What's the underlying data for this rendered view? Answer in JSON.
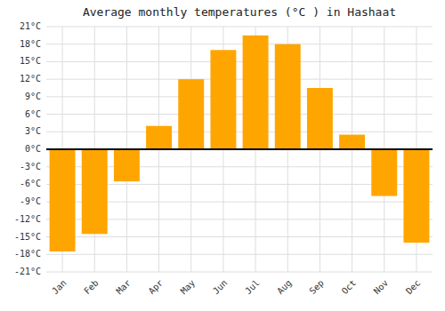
{
  "chart_data": {
    "type": "bar",
    "title": "Average monthly temperatures (°C ) in Hashaat",
    "categories": [
      "Jan",
      "Feb",
      "Mar",
      "Apr",
      "May",
      "Jun",
      "Jul",
      "Aug",
      "Sep",
      "Oct",
      "Nov",
      "Dec"
    ],
    "values": [
      -17.5,
      -14.5,
      -5.5,
      4.0,
      12.0,
      17.0,
      19.5,
      18.0,
      10.5,
      2.5,
      -8.0,
      -16.0
    ],
    "color": "#FFA500",
    "ylim": [
      -21,
      21
    ],
    "yticks": [
      {
        "value": -21,
        "label": "-21°C"
      },
      {
        "value": -18,
        "label": "-18°C"
      },
      {
        "value": -15,
        "label": "-15°C"
      },
      {
        "value": -12,
        "label": "-12°C"
      },
      {
        "value": -9,
        "label": "-9°C"
      },
      {
        "value": -6,
        "label": "-6°C"
      },
      {
        "value": -3,
        "label": "-3°C"
      },
      {
        "value": 0,
        "label": "0°C"
      },
      {
        "value": 3,
        "label": "3°C"
      },
      {
        "value": 6,
        "label": "6°C"
      },
      {
        "value": 9,
        "label": "9°C"
      },
      {
        "value": 12,
        "label": "12°C"
      },
      {
        "value": 15,
        "label": "15°C"
      },
      {
        "value": 18,
        "label": "18°C"
      },
      {
        "value": 21,
        "label": "21°C"
      }
    ],
    "grid": true
  }
}
